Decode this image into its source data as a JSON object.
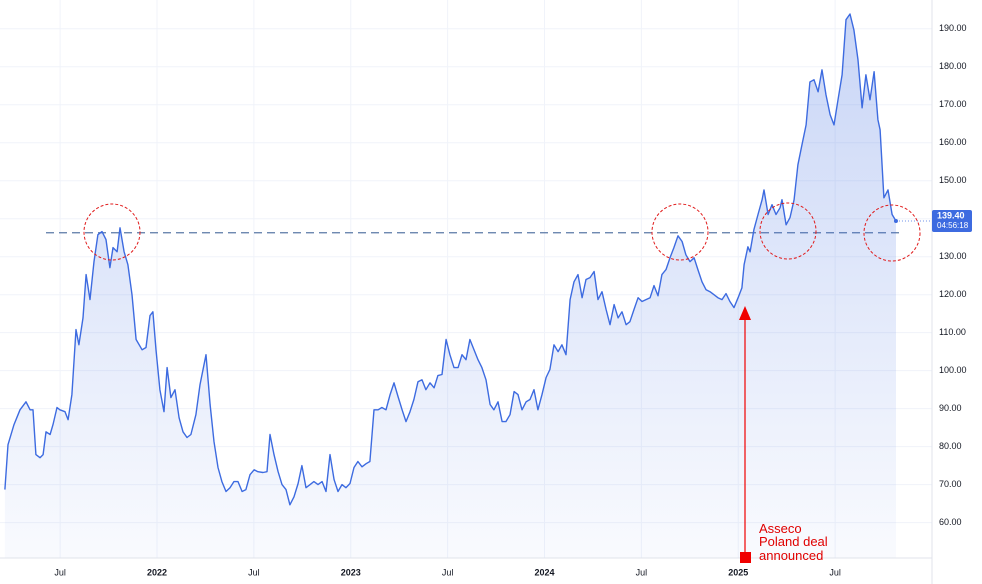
{
  "chart_data": {
    "type": "area",
    "color": "#3d6be0",
    "grid": true,
    "xlim": [
      2021.2,
      2026.0
    ],
    "ylim": [
      52,
      196
    ],
    "xticks": [
      {
        "value": 2021.5,
        "label": "Jul"
      },
      {
        "value": 2022,
        "label": "2022"
      },
      {
        "value": 2022.5,
        "label": "Jul"
      },
      {
        "value": 2023,
        "label": "2023"
      },
      {
        "value": 2023.5,
        "label": "Jul"
      },
      {
        "value": 2024,
        "label": "2024"
      },
      {
        "value": 2024.5,
        "label": "Jul"
      },
      {
        "value": 2025,
        "label": "2025"
      },
      {
        "value": 2025.5,
        "label": "Jul"
      }
    ],
    "yticks": [
      {
        "value": 60,
        "label": "60.00"
      },
      {
        "value": 70,
        "label": "70.00"
      },
      {
        "value": 80,
        "label": "80.00"
      },
      {
        "value": 90,
        "label": "90.00"
      },
      {
        "value": 100,
        "label": "100.00"
      },
      {
        "value": 110,
        "label": "110.00"
      },
      {
        "value": 120,
        "label": "120.00"
      },
      {
        "value": 130,
        "label": "130.00"
      },
      {
        "value": 140,
        "label": "140.00"
      },
      {
        "value": 150,
        "label": "150.00"
      },
      {
        "value": 160,
        "label": "160.00"
      },
      {
        "value": 170,
        "label": "170.00"
      },
      {
        "value": 180,
        "label": "180.00"
      },
      {
        "value": 190,
        "label": "190.00"
      }
    ],
    "hline": 136.3,
    "last_value_label": "139.40",
    "countdown": "04:56:18",
    "annotation": [
      "Asseco",
      "Poland deal",
      "announced"
    ],
    "x": [
      2021.215,
      2021.231,
      2021.262,
      2021.293,
      2021.324,
      2021.345,
      2021.36,
      2021.375,
      2021.396,
      2021.412,
      2021.427,
      2021.448,
      2021.463,
      2021.484,
      2021.499,
      2021.525,
      2021.541,
      2021.561,
      2021.582,
      2021.597,
      2021.618,
      2021.634,
      2021.654,
      2021.675,
      2021.695,
      2021.716,
      2021.737,
      2021.757,
      2021.773,
      2021.794,
      2021.809,
      2021.83,
      2021.85,
      2021.871,
      2021.892,
      2021.923,
      2021.943,
      2021.964,
      2021.979,
      2021.995,
      2022.015,
      2022.036,
      2022.052,
      2022.072,
      2022.093,
      2022.114,
      2022.134,
      2022.155,
      2022.175,
      2022.201,
      2022.222,
      2022.253,
      2022.274,
      2022.294,
      2022.315,
      2022.335,
      2022.356,
      2022.377,
      2022.397,
      2022.418,
      2022.439,
      2022.459,
      2022.48,
      2022.501,
      2022.521,
      2022.547,
      2022.568,
      2022.583,
      2022.604,
      2022.625,
      2022.645,
      2022.666,
      2022.686,
      2022.707,
      2022.728,
      2022.748,
      2022.769,
      2022.79,
      2022.81,
      2022.831,
      2022.852,
      2022.872,
      2022.893,
      2022.914,
      2022.934,
      2022.955,
      2022.975,
      2022.996,
      2023.017,
      2023.037,
      2023.058,
      2023.079,
      2023.099,
      2023.12,
      2023.141,
      2023.161,
      2023.182,
      2023.203,
      2023.223,
      2023.244,
      2023.265,
      2023.285,
      2023.306,
      2023.326,
      2023.347,
      2023.368,
      2023.388,
      2023.409,
      2023.43,
      2023.45,
      2023.471,
      2023.492,
      2023.512,
      2023.533,
      2023.554,
      2023.574,
      2023.595,
      2023.615,
      2023.636,
      2023.657,
      2023.677,
      2023.698,
      2023.719,
      2023.739,
      2023.76,
      2023.781,
      2023.801,
      2023.822,
      2023.843,
      2023.863,
      2023.884,
      2023.905,
      2023.925,
      2023.946,
      2023.966,
      2023.987,
      2024.008,
      2024.028,
      2024.049,
      2024.07,
      2024.09,
      2024.111,
      2024.132,
      2024.152,
      2024.173,
      2024.194,
      2024.214,
      2024.235,
      2024.256,
      2024.276,
      2024.297,
      2024.318,
      2024.338,
      2024.359,
      2024.38,
      2024.4,
      2024.421,
      2024.441,
      2024.462,
      2024.483,
      2024.503,
      2024.524,
      2024.545,
      2024.565,
      2024.586,
      2024.606,
      2024.627,
      2024.648,
      2024.668,
      2024.689,
      2024.71,
      2024.73,
      2024.751,
      2024.772,
      2024.792,
      2024.813,
      2024.834,
      2024.854,
      2024.875,
      2024.895,
      2024.916,
      2024.937,
      2024.957,
      2024.978,
      2024.999,
      2025.019,
      2025.03,
      2025.05,
      2025.061,
      2025.081,
      2025.102,
      2025.123,
      2025.133,
      2025.154,
      2025.174,
      2025.195,
      2025.216,
      2025.226,
      2025.247,
      2025.267,
      2025.288,
      2025.308,
      2025.329,
      2025.35,
      2025.37,
      2025.391,
      2025.412,
      2025.432,
      2025.453,
      2025.474,
      2025.494,
      2025.515,
      2025.536,
      2025.556,
      2025.577,
      2025.597,
      2025.618,
      2025.639,
      2025.659,
      2025.68,
      2025.701,
      2025.721,
      2025.732,
      2025.752,
      2025.773,
      2025.794,
      2025.814
    ],
    "series": [
      {
        "color": "#3d6be0",
        "values": [
          68.7,
          80.5,
          85.8,
          89.7,
          91.8,
          89.7,
          89.7,
          77.9,
          77.1,
          77.9,
          83.9,
          83.2,
          85.8,
          90.3,
          89.7,
          89.2,
          87.1,
          93.7,
          110.8,
          106.8,
          113.9,
          125.3,
          118.7,
          128.7,
          135.8,
          136.6,
          134.5,
          127.1,
          132.4,
          131.3,
          137.6,
          131.3,
          127.9,
          120.0,
          108.2,
          105.5,
          106.1,
          114.5,
          115.5,
          105.5,
          95.0,
          89.2,
          100.8,
          92.9,
          95.0,
          87.6,
          83.9,
          82.4,
          83.2,
          88.4,
          96.3,
          104.2,
          91.1,
          81.3,
          74.5,
          70.8,
          68.2,
          69.2,
          70.8,
          70.8,
          68.2,
          68.7,
          72.6,
          73.9,
          73.4,
          73.2,
          73.4,
          83.2,
          77.9,
          73.4,
          70.0,
          68.7,
          64.7,
          66.8,
          70.3,
          75.0,
          69.2,
          70.0,
          70.8,
          70.0,
          70.8,
          68.2,
          77.9,
          71.3,
          68.2,
          70.0,
          69.2,
          70.3,
          74.5,
          76.1,
          74.7,
          75.5,
          76.1,
          89.7,
          89.7,
          90.3,
          89.7,
          93.7,
          96.8,
          93.2,
          89.7,
          86.6,
          89.2,
          92.4,
          97.1,
          97.6,
          95.0,
          96.8,
          95.5,
          98.7,
          99.0,
          108.2,
          104.2,
          100.8,
          100.8,
          104.2,
          102.9,
          108.2,
          105.5,
          102.9,
          100.8,
          97.6,
          91.1,
          89.7,
          91.8,
          86.6,
          86.6,
          88.4,
          94.5,
          93.7,
          89.7,
          91.8,
          92.4,
          95.0,
          89.7,
          93.7,
          98.2,
          100.3,
          106.8,
          105.0,
          106.8,
          104.2,
          118.7,
          123.4,
          125.3,
          119.2,
          124.0,
          124.5,
          126.1,
          118.7,
          120.8,
          116.1,
          112.1,
          117.4,
          113.9,
          115.5,
          112.1,
          112.9,
          116.1,
          119.2,
          118.2,
          118.7,
          119.2,
          122.4,
          119.7,
          125.3,
          126.6,
          129.7,
          132.4,
          135.5,
          134.0,
          130.5,
          128.7,
          129.7,
          126.6,
          123.4,
          121.3,
          120.8,
          120.0,
          119.2,
          118.7,
          120.3,
          118.2,
          116.6,
          119.2,
          121.8,
          127.9,
          132.6,
          131.3,
          137.1,
          141.1,
          145.0,
          147.6,
          141.1,
          143.7,
          141.1,
          142.9,
          145.0,
          138.4,
          140.3,
          145.0,
          154.2,
          159.5,
          164.7,
          176.0,
          176.6,
          173.4,
          179.2,
          172.6,
          167.4,
          164.7,
          171.3,
          177.9,
          192.4,
          193.9,
          189.7,
          181.8,
          169.2,
          177.9,
          171.3,
          178.7,
          166.1,
          163.4,
          145.5,
          147.6,
          141.1,
          139.4
        ]
      }
    ]
  }
}
